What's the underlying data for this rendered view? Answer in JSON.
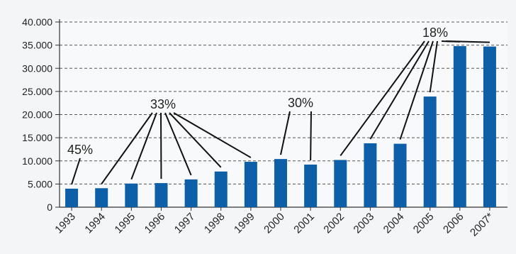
{
  "chart_data": {
    "type": "bar",
    "categories": [
      "1993",
      "1994",
      "1995",
      "1996",
      "1997",
      "1998",
      "1999",
      "2000",
      "2001",
      "2002",
      "2003",
      "2004",
      "2005",
      "2006",
      "2007*"
    ],
    "series": [
      {
        "values": [
          4000,
          4100,
          5100,
          5200,
          6000,
          7700,
          9800,
          10400,
          9200,
          10200,
          13800,
          13700,
          23900,
          34800,
          34700
        ]
      }
    ],
    "ylim": [
      0,
      40000
    ],
    "yticks": [
      0,
      5000,
      10000,
      15000,
      20000,
      25000,
      30000,
      35000,
      40000
    ],
    "ytick_labels": [
      "0",
      "5.000",
      "10.000",
      "15.000",
      "20.000",
      "25.000",
      "30.000",
      "35.000",
      "40.000"
    ],
    "grid": "horizontal-dashed",
    "bar_color": "#0d5fa8",
    "annotations": [
      {
        "text": "45%",
        "targets": [
          "1993"
        ]
      },
      {
        "text": "33%",
        "targets": [
          "1994",
          "1995",
          "1996",
          "1997",
          "1998",
          "1999"
        ]
      },
      {
        "text": "30%",
        "targets": [
          "2000",
          "2001"
        ]
      },
      {
        "text": "18%",
        "targets": [
          "2002",
          "2003",
          "2004",
          "2005",
          "2006",
          "2007*"
        ]
      }
    ]
  }
}
